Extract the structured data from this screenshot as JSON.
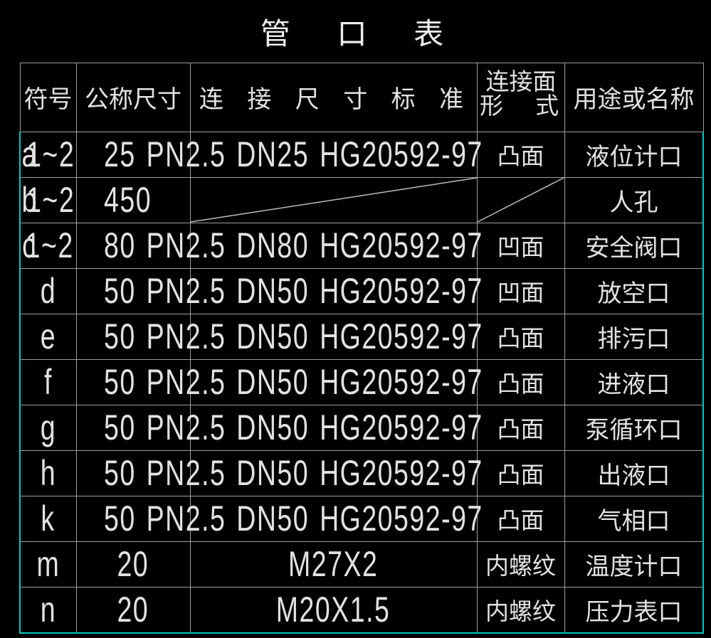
{
  "title": "管 口 表",
  "header": {
    "symbol": "符号",
    "nominal_size": "公称尺寸",
    "connection_standard": "连 接 尺 寸 标 准",
    "face_form_line1": "连接面",
    "face_form_line2": "形  式",
    "usage": "用途或名称"
  },
  "colors": {
    "background": "#000000",
    "grid_line": "#9f9f9f",
    "outer_border": "#00c6c6",
    "text": "#e2e2e2"
  },
  "rows": [
    {
      "sym_base": "a",
      "sym_sub": "1",
      "sym_suffix": "~2",
      "size": "25",
      "std": "PN2.5 DN25 HG20592-97",
      "face": "凸面",
      "name": "液位计口",
      "layout": "overflow",
      "diagonal": false
    },
    {
      "sym_base": "b",
      "sym_sub": "1",
      "sym_suffix": "~2",
      "size": "450",
      "std": "",
      "face": "",
      "name": "人孔",
      "layout": "overflow",
      "diagonal": true
    },
    {
      "sym_base": "c",
      "sym_sub": "1",
      "sym_suffix": "~2",
      "size": "80",
      "std": "PN2.5 DN80 HG20592-97",
      "face": "凹面",
      "name": "安全阀口",
      "layout": "overflow",
      "diagonal": false
    },
    {
      "sym_base": "d",
      "sym_sub": "",
      "sym_suffix": "",
      "size": "50",
      "std": "PN2.5 DN50 HG20592-97",
      "face": "凹面",
      "name": "放空口",
      "layout": "overflow",
      "diagonal": false
    },
    {
      "sym_base": "e",
      "sym_sub": "",
      "sym_suffix": "",
      "size": "50",
      "std": "PN2.5 DN50 HG20592-97",
      "face": "凸面",
      "name": "排污口",
      "layout": "overflow",
      "diagonal": false
    },
    {
      "sym_base": "f",
      "sym_sub": "",
      "sym_suffix": "",
      "size": "50",
      "std": "PN2.5 DN50 HG20592-97",
      "face": "凸面",
      "name": "进液口",
      "layout": "overflow",
      "diagonal": false
    },
    {
      "sym_base": "g",
      "sym_sub": "",
      "sym_suffix": "",
      "size": "50",
      "std": "PN2.5 DN50 HG20592-97",
      "face": "凸面",
      "name": "泵循环口",
      "layout": "overflow",
      "diagonal": false
    },
    {
      "sym_base": "h",
      "sym_sub": "",
      "sym_suffix": "",
      "size": "50",
      "std": "PN2.5 DN50 HG20592-97",
      "face": "凸面",
      "name": "出液口",
      "layout": "overflow",
      "diagonal": false
    },
    {
      "sym_base": "k",
      "sym_sub": "",
      "sym_suffix": "",
      "size": "50",
      "std": "PN2.5 DN50 HG20592-97",
      "face": "凸面",
      "name": "气相口",
      "layout": "overflow",
      "diagonal": false
    },
    {
      "sym_base": "m",
      "sym_sub": "",
      "sym_suffix": "",
      "size": "20",
      "std": "M27X2",
      "face": "内螺纹",
      "name": "温度计口",
      "layout": "centered",
      "diagonal": false
    },
    {
      "sym_base": "n",
      "sym_sub": "",
      "sym_suffix": "",
      "size": "20",
      "std": "M20X1.5",
      "face": "内螺纹",
      "name": "压力表口",
      "layout": "centered",
      "diagonal": false
    }
  ]
}
